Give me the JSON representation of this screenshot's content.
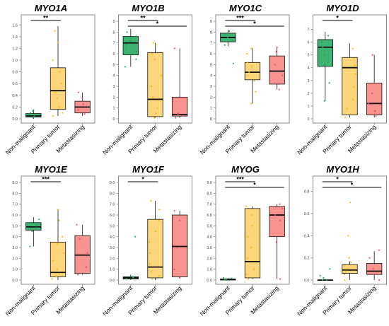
{
  "colors": {
    "non_malignant": "#3cb371",
    "primary_tumor": "#fdd57a",
    "metastasizing": "#f9938f",
    "box_stroke": "#111111",
    "axis_grey": "#8a8a8a",
    "point_nonmal": "#1f9d55",
    "point_primary": "#f2b705",
    "point_meta": "#e0457b"
  },
  "chart_data": [
    {
      "type": "box",
      "title": "MYO1A",
      "categories": [
        "Non-malignant",
        "Primary tumor",
        "Metastasizing"
      ],
      "ylim": [
        0,
        1.7
      ],
      "yticks": [
        "0.0",
        "0.2",
        "0.4",
        "0.6",
        "0.8",
        "1.0",
        "1.2",
        "1.4",
        "1.6"
      ],
      "boxes": [
        {
          "q1": 0.03,
          "median": 0.05,
          "q3": 0.09,
          "min": 0.0,
          "max": 0.15
        },
        {
          "q1": 0.16,
          "median": 0.48,
          "q3": 0.87,
          "min": 0.05,
          "max": 1.58
        },
        {
          "q1": 0.1,
          "median": 0.2,
          "q3": 0.3,
          "min": 0.05,
          "max": 0.45
        }
      ],
      "points": [
        [
          0.02,
          0.05,
          0.08,
          0.1,
          0.13,
          0.15
        ],
        [
          0.05,
          0.1,
          0.2,
          0.35,
          0.45,
          0.6,
          0.8,
          1.0,
          1.3,
          1.5
        ],
        [
          0.08,
          0.15,
          0.25,
          0.35,
          0.45
        ]
      ],
      "sig": [
        {
          "from": 0,
          "to": 1,
          "label": "**"
        }
      ]
    },
    {
      "type": "box",
      "title": "MYO1B",
      "categories": [
        "Non-malignant",
        "Primary tumor",
        "Metastasizing"
      ],
      "ylim": [
        0,
        9.2
      ],
      "yticks": [
        "0",
        "1",
        "2",
        "3",
        "4",
        "5",
        "6",
        "7",
        "8",
        "9"
      ],
      "boxes": [
        {
          "q1": 5.9,
          "median": 7.0,
          "q3": 7.6,
          "min": 4.8,
          "max": 8.3
        },
        {
          "q1": 0.2,
          "median": 1.8,
          "q3": 6.1,
          "min": 0.1,
          "max": 7.0
        },
        {
          "q1": 0.25,
          "median": 0.4,
          "q3": 2.0,
          "min": 0.1,
          "max": 6.5
        }
      ],
      "points": [
        [
          4.8,
          5.5,
          6.2,
          6.8,
          7.2,
          7.6,
          8.0
        ],
        [
          0.1,
          0.5,
          1.0,
          2.0,
          3.0,
          4.0,
          5.5,
          6.0,
          6.8,
          7.0
        ],
        [
          0.1,
          0.3,
          0.4,
          0.5,
          6.5
        ]
      ],
      "sig": [
        {
          "from": 0,
          "to": 1,
          "label": "**"
        },
        {
          "from": 0,
          "to": 2,
          "label": "*"
        }
      ]
    },
    {
      "type": "box",
      "title": "MYO1C",
      "categories": [
        "Non-malignant",
        "Primary tumor",
        "Metastasizing"
      ],
      "ylim": [
        0,
        9.2
      ],
      "yticks": [
        "0",
        "1",
        "2",
        "3",
        "4",
        "5",
        "6",
        "7",
        "8",
        "9"
      ],
      "boxes": [
        {
          "q1": 7.1,
          "median": 7.5,
          "q3": 7.9,
          "min": 6.7,
          "max": 8.2
        },
        {
          "q1": 3.6,
          "median": 4.3,
          "q3": 5.2,
          "min": 1.4,
          "max": 6.5
        },
        {
          "q1": 3.2,
          "median": 4.4,
          "q3": 5.8,
          "min": 2.7,
          "max": 6.6
        }
      ],
      "points": [
        [
          5.1,
          6.8,
          7.2,
          7.5,
          7.8,
          8.1
        ],
        [
          1.4,
          2.5,
          3.5,
          4.0,
          4.3,
          4.8,
          5.2,
          6.0,
          6.5
        ],
        [
          2.7,
          3.2,
          4.0,
          5.0,
          6.2,
          6.6
        ]
      ],
      "sig": [
        {
          "from": 0,
          "to": 1,
          "label": "***"
        },
        {
          "from": 0,
          "to": 2,
          "label": "*"
        }
      ]
    },
    {
      "type": "box",
      "title": "MYO1D",
      "categories": [
        "Non-malignant",
        "Primary tumor",
        "Metastasizing"
      ],
      "ylim": [
        0,
        7.8
      ],
      "yticks": [
        "0",
        "1",
        "2",
        "3",
        "4",
        "5",
        "6",
        "7"
      ],
      "boxes": [
        {
          "q1": 4.1,
          "median": 5.6,
          "q3": 6.2,
          "min": 1.4,
          "max": 6.8
        },
        {
          "q1": 0.3,
          "median": 4.0,
          "q3": 4.8,
          "min": 0.1,
          "max": 5.9
        },
        {
          "q1": 0.3,
          "median": 1.2,
          "q3": 2.8,
          "min": 0.1,
          "max": 5.0
        }
      ],
      "points": [
        [
          1.4,
          2.8,
          4.2,
          5.0,
          5.6,
          6.0,
          6.5
        ],
        [
          0.1,
          0.8,
          1.5,
          2.5,
          3.5,
          4.2,
          4.7,
          5.5
        ],
        [
          0.2,
          0.6,
          1.2,
          2.0,
          5.0
        ]
      ],
      "sig": [
        {
          "from": 0,
          "to": 1,
          "label": "*"
        }
      ]
    },
    {
      "type": "box",
      "title": "MYO1E",
      "categories": [
        "Non-malignant",
        "Primary tumor",
        "Metastasizing"
      ],
      "ylim": [
        0,
        9.2
      ],
      "yticks": [
        "0.0",
        "1.0",
        "2.0",
        "3.0",
        "4.0",
        "5.0",
        "6.0",
        "7.0",
        "8.0",
        "9.0"
      ],
      "boxes": [
        {
          "q1": 4.6,
          "median": 4.9,
          "q3": 5.3,
          "min": 3.1,
          "max": 5.8
        },
        {
          "q1": 0.3,
          "median": 0.7,
          "q3": 3.5,
          "min": 0.0,
          "max": 6.5
        },
        {
          "q1": 0.6,
          "median": 2.3,
          "q3": 4.1,
          "min": 0.5,
          "max": 5.1
        }
      ],
      "points": [
        [
          3.1,
          4.5,
          4.8,
          5.0,
          5.3,
          5.6
        ],
        [
          0.1,
          0.3,
          0.6,
          1.0,
          1.8,
          2.5,
          3.3,
          4.0,
          5.5,
          6.5
        ],
        [
          0.5,
          1.2,
          2.5,
          3.8,
          5.1
        ]
      ],
      "sig": [
        {
          "from": 0,
          "to": 1,
          "label": "***"
        }
      ]
    },
    {
      "type": "box",
      "title": "MYO1F",
      "categories": [
        "Non-malignant",
        "Primary tumor",
        "Metastasizing"
      ],
      "ylim": [
        0,
        9.2
      ],
      "yticks": [
        "0.0",
        "1.0",
        "2.0",
        "3.0",
        "4.0",
        "5.0",
        "6.0",
        "7.0",
        "8.0",
        "9.0"
      ],
      "boxes": [
        {
          "q1": 0.1,
          "median": 0.2,
          "q3": 0.3,
          "min": 0.0,
          "max": 0.5
        },
        {
          "q1": 0.2,
          "median": 1.2,
          "q3": 5.6,
          "min": 0.0,
          "max": 7.3
        },
        {
          "q1": 0.3,
          "median": 3.1,
          "q3": 6.0,
          "min": 0.2,
          "max": 6.4
        }
      ],
      "points": [
        [
          0.1,
          0.2,
          0.25,
          0.3,
          4.0
        ],
        [
          0.1,
          0.4,
          0.8,
          1.5,
          2.5,
          3.5,
          4.5,
          5.5,
          6.5,
          7.3
        ],
        [
          0.2,
          1.0,
          3.0,
          5.5,
          6.4
        ]
      ],
      "sig": [
        {
          "from": 0,
          "to": 1,
          "label": "*"
        }
      ]
    },
    {
      "type": "box",
      "title": "MYOG",
      "categories": [
        "Non-malignant",
        "Primary tumor",
        "Metastasizing"
      ],
      "ylim": [
        0,
        9.2
      ],
      "yticks": [
        "0.0",
        "1.0",
        "2.0",
        "3.0",
        "4.0",
        "5.0",
        "6.0",
        "7.0",
        "8.0",
        "9.0"
      ],
      "boxes": [
        {
          "q1": 0.0,
          "median": 0.05,
          "q3": 0.1,
          "min": 0.0,
          "max": 0.2
        },
        {
          "q1": 0.2,
          "median": 1.7,
          "q3": 6.6,
          "min": 0.1,
          "max": 6.8
        },
        {
          "q1": 4.0,
          "median": 6.0,
          "q3": 6.8,
          "min": 0.1,
          "max": 7.0
        }
      ],
      "points": [
        [
          0.0,
          0.05,
          0.1,
          0.15,
          0.2
        ],
        [
          0.1,
          0.5,
          1.0,
          2.0,
          3.0,
          4.0,
          5.0,
          6.0,
          6.8
        ],
        [
          0.1,
          3.5,
          5.5,
          6.0,
          6.6,
          7.0
        ]
      ],
      "sig": [
        {
          "from": 0,
          "to": 1,
          "label": "***"
        },
        {
          "from": 0,
          "to": 2,
          "label": "*"
        }
      ]
    },
    {
      "type": "box",
      "title": "MYO1H",
      "categories": [
        "Non-malignant",
        "Primary tumor",
        "Metastasizing"
      ],
      "ylim": [
        0,
        0.9
      ],
      "yticks": [
        "0.0",
        "0.2",
        "0.4",
        "0.6",
        "0.8"
      ],
      "boxes": [
        {
          "q1": 0.0,
          "median": 0.0,
          "q3": 0.0,
          "min": 0.0,
          "max": 0.0
        },
        {
          "q1": 0.06,
          "median": 0.09,
          "q3": 0.14,
          "min": 0.0,
          "max": 0.17
        },
        {
          "q1": 0.05,
          "median": 0.08,
          "q3": 0.15,
          "min": 0.0,
          "max": 0.26
        }
      ],
      "points": [
        [
          0.0,
          0.0,
          0.02,
          0.04,
          0.1
        ],
        [
          0.0,
          0.05,
          0.08,
          0.1,
          0.13,
          0.16,
          0.2,
          0.4,
          0.7
        ],
        [
          0.0,
          0.05,
          0.1,
          0.2,
          0.27
        ]
      ],
      "sig": [
        {
          "from": 0,
          "to": 1,
          "label": "*"
        },
        {
          "from": 0,
          "to": 2,
          "label": "*"
        }
      ]
    }
  ]
}
